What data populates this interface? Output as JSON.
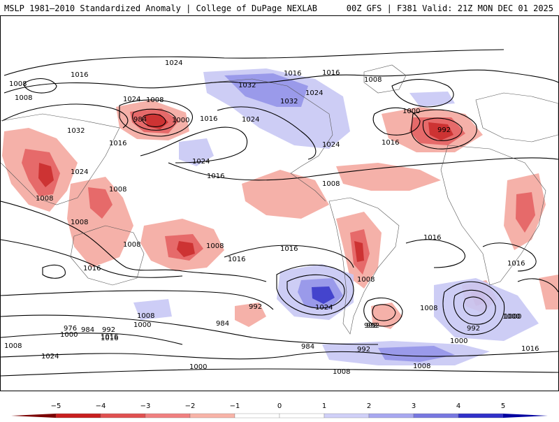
{
  "header": {
    "left_title": "MSLP 1981–2010 Standardized Anomaly | College of DuPage NEXLAB",
    "right_title": "00Z GFS | F381 Valid: 21Z MON DEC 01 2025"
  },
  "map": {
    "isobar_labels": [
      "1008",
      "1024",
      "1016",
      "1008",
      "1032",
      "1016",
      "1024",
      "1008",
      "1008",
      "1016",
      "1000",
      "984",
      "1016",
      "1024",
      "1032",
      "1016",
      "1024",
      "1032",
      "1024",
      "1000",
      "992",
      "1016",
      "1024",
      "1016",
      "1008",
      "1008",
      "1008",
      "1008",
      "1016",
      "1016",
      "1008",
      "1016",
      "1016",
      "1024",
      "1008",
      "992",
      "1008",
      "1024",
      "992",
      "1008",
      "1000",
      "1016",
      "984",
      "976",
      "984",
      "992",
      "1000",
      "1016",
      "1024",
      "1008",
      "1000",
      "992",
      "984",
      "992",
      "1000",
      "1008",
      "1008",
      "1000",
      "992",
      "1000",
      "1016",
      "1016",
      "1008"
    ],
    "colors": {
      "neg_strong": "#c81e1e",
      "neg_mid": "#e45a5a",
      "neg_light": "#f4a9a0",
      "pos_light": "#c8c8f5",
      "pos_mid": "#9090e8",
      "pos_strong": "#3030c8"
    }
  },
  "colorbar": {
    "ticks": [
      "−5",
      "−4",
      "−3",
      "−2",
      "−1",
      "0",
      "1",
      "2",
      "3",
      "4",
      "5"
    ],
    "colors": [
      "#7a0000",
      "#c81e1e",
      "#e05050",
      "#f08080",
      "#f8b4a8",
      "#ffffff",
      "#ffffff",
      "#d0d0f8",
      "#a8a8f0",
      "#7878e0",
      "#3030c8",
      "#0000a0"
    ]
  }
}
